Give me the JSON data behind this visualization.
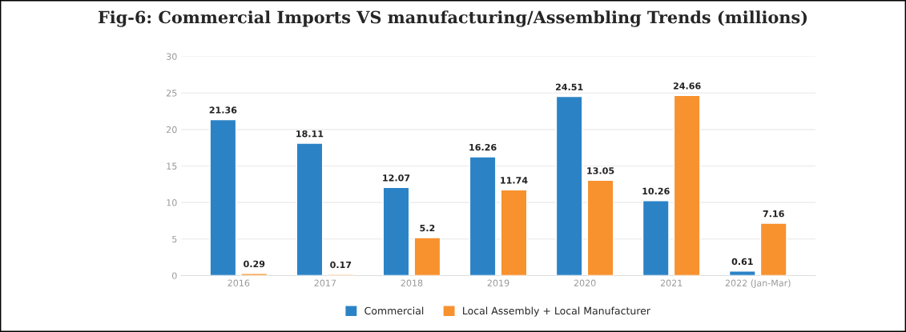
{
  "chart_data": {
    "type": "bar",
    "title": "Fig-6: Commercial Imports VS manufacturing/Assembling Trends (millions)",
    "categories": [
      "2016",
      "2017",
      "2018",
      "2019",
      "2020",
      "2021",
      "2022 (Jan-Mar)"
    ],
    "series": [
      {
        "name": "Commercial",
        "color": "#2b83c6",
        "values": [
          21.36,
          18.11,
          12.07,
          16.26,
          24.51,
          10.26,
          0.61
        ]
      },
      {
        "name": "Local Assembly + Local Manufacturer",
        "color": "#f7922f",
        "values": [
          0.29,
          0.17,
          5.2,
          11.74,
          13.05,
          24.66,
          7.16
        ]
      }
    ],
    "ylim": [
      0,
      30
    ],
    "yticks": [
      0,
      5,
      10,
      15,
      20,
      25,
      30
    ],
    "grid": "y",
    "legend": "bottom",
    "data_labels": true
  }
}
